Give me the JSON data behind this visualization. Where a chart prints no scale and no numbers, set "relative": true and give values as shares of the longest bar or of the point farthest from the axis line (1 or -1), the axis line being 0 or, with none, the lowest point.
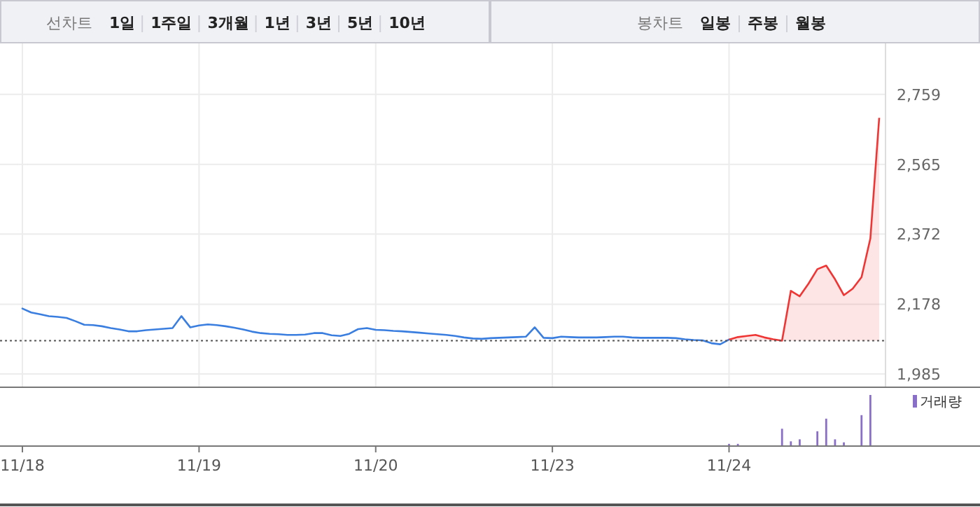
{
  "chart_data": [
    {
      "type": "other",
      "title": "선차트",
      "categories": [
        "1일",
        "1주일",
        "3개월",
        "1년",
        "3년",
        "5년",
        "10년"
      ]
    },
    {
      "type": "other",
      "title": "봉차트",
      "categories": [
        "일봉",
        "주봉",
        "월봉"
      ]
    },
    {
      "type": "line",
      "categories": [
        null,
        null,
        null,
        null,
        null,
        null,
        null,
        null,
        null,
        null,
        null,
        null,
        null,
        null,
        null,
        null,
        null,
        null,
        null,
        null,
        null,
        null,
        null,
        null,
        null,
        null,
        null,
        null,
        null,
        null,
        null,
        null,
        null,
        null,
        null,
        null,
        null,
        null,
        null,
        null,
        null,
        null,
        null,
        null,
        null,
        null,
        null,
        null,
        null,
        null,
        null,
        null,
        null,
        null,
        null,
        null,
        null,
        null,
        null,
        null,
        null,
        null,
        null,
        null,
        null,
        null,
        null,
        null,
        null,
        null,
        null,
        null,
        null,
        null,
        null,
        null,
        null,
        null,
        null,
        null,
        null,
        null,
        null,
        null,
        null,
        null,
        null,
        null,
        null,
        null,
        null,
        null,
        null,
        null,
        null,
        null,
        null,
        null
      ],
      "ylim": [
        1950,
        2900
      ],
      "yticks": [
        {
          "value": 1985,
          "label": "1,985"
        },
        {
          "value": 2178,
          "label": "2,178"
        },
        {
          "value": 2372,
          "label": "2,372"
        },
        {
          "value": 2565,
          "label": "2,565"
        },
        {
          "value": 2759,
          "label": "2,759"
        }
      ],
      "tick_labels": "y",
      "grid": true,
      "ref_lines": [
        {
          "axis": "y",
          "value": 2077,
          "color": "#555555",
          "line_style": "dotted"
        }
      ],
      "series": [
        {
          "color": "#3a7ee0",
          "values": [
            2166,
            2155,
            2150,
            2145,
            2143,
            2140,
            2131,
            2121,
            2120,
            2117,
            2112,
            2108,
            2103,
            2103,
            2106,
            2108,
            2110,
            2112,
            2145,
            2114,
            2119,
            2122,
            2120,
            2117,
            2113,
            2108,
            2102,
            2098,
            2096,
            2095,
            2093,
            2093,
            2094,
            2098,
            2098,
            2092,
            2090,
            2096,
            2109,
            2112,
            2107,
            2106,
            2104,
            2103,
            2101,
            2099,
            2097,
            2095,
            2093,
            2090,
            2086,
            2083,
            2082,
            2084,
            2085,
            2086,
            2087,
            2088,
            2114,
            2085,
            2084,
            2088,
            2087,
            2086,
            2086,
            2086,
            2087,
            2088,
            2088,
            2086,
            2085,
            2085,
            2085,
            2085,
            2084,
            2081,
            2079,
            2078,
            2070,
            2067,
            2080,
            null,
            null,
            null,
            null,
            null,
            null,
            null,
            null,
            null,
            null,
            null,
            null,
            null,
            null,
            null,
            null,
            null
          ]
        },
        {
          "type": "area",
          "color": "#f03535",
          "values": [
            null,
            null,
            null,
            null,
            null,
            null,
            null,
            null,
            null,
            null,
            null,
            null,
            null,
            null,
            null,
            null,
            null,
            null,
            null,
            null,
            null,
            null,
            null,
            null,
            null,
            null,
            null,
            null,
            null,
            null,
            null,
            null,
            null,
            null,
            null,
            null,
            null,
            null,
            null,
            null,
            null,
            null,
            null,
            null,
            null,
            null,
            null,
            null,
            null,
            null,
            null,
            null,
            null,
            null,
            null,
            null,
            null,
            null,
            null,
            null,
            null,
            null,
            null,
            null,
            null,
            null,
            null,
            null,
            null,
            null,
            null,
            null,
            null,
            null,
            null,
            null,
            null,
            null,
            null,
            null,
            2080,
            2087,
            2090,
            2093,
            2086,
            2081,
            2077,
            2215,
            2200,
            2235,
            2275,
            2285,
            2247,
            2203,
            2221,
            2253,
            2360,
            2694
          ]
        }
      ]
    },
    {
      "type": "bar",
      "relative": true,
      "categories": [
        "11/18",
        null,
        null,
        null,
        null,
        null,
        null,
        null,
        null,
        null,
        null,
        null,
        null,
        null,
        null,
        null,
        null,
        null,
        null,
        null,
        "11/19",
        null,
        null,
        null,
        null,
        null,
        null,
        null,
        null,
        null,
        null,
        null,
        null,
        null,
        null,
        null,
        null,
        null,
        null,
        null,
        "11/20",
        null,
        null,
        null,
        null,
        null,
        null,
        null,
        null,
        null,
        null,
        null,
        null,
        null,
        null,
        null,
        null,
        null,
        null,
        null,
        "11/23",
        null,
        null,
        null,
        null,
        null,
        null,
        null,
        null,
        null,
        null,
        null,
        null,
        null,
        null,
        null,
        null,
        null,
        null,
        null,
        "11/24",
        null,
        null,
        null,
        null,
        null,
        null,
        null,
        null,
        null,
        null,
        null,
        null,
        null,
        null,
        null,
        null,
        null
      ],
      "tick_labels": "x",
      "legend": "top right",
      "series": [
        {
          "name": "거래량",
          "color": "#8a6fc9",
          "values": [
            null,
            null,
            null,
            null,
            null,
            null,
            null,
            null,
            null,
            null,
            null,
            null,
            null,
            null,
            null,
            null,
            null,
            null,
            null,
            null,
            null,
            null,
            null,
            null,
            null,
            null,
            null,
            null,
            null,
            null,
            null,
            null,
            null,
            null,
            null,
            null,
            null,
            null,
            null,
            null,
            null,
            null,
            null,
            null,
            null,
            null,
            null,
            null,
            null,
            null,
            null,
            null,
            null,
            null,
            null,
            null,
            null,
            null,
            null,
            null,
            null,
            null,
            null,
            null,
            null,
            null,
            null,
            null,
            null,
            null,
            null,
            null,
            null,
            null,
            null,
            null,
            null,
            null,
            null,
            null,
            0.03,
            0.03,
            null,
            null,
            null,
            null,
            0.33,
            0.08,
            0.12,
            null,
            0.28,
            0.53,
            0.12,
            0.06,
            null,
            0.6,
            1,
            null
          ]
        }
      ]
    }
  ]
}
